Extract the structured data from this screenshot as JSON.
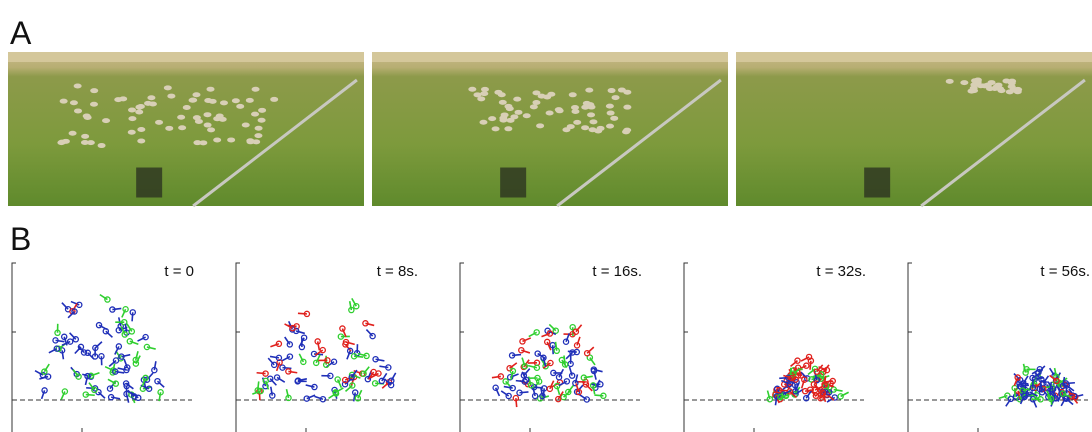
{
  "panels": [
    {
      "label": "A"
    },
    {
      "label": "B"
    }
  ],
  "plots": [
    {
      "time": "t = 0"
    },
    {
      "time": "t = 8s."
    },
    {
      "time": "t = 16s."
    },
    {
      "time": "t = 32s."
    },
    {
      "time": "t = 56s."
    }
  ]
}
